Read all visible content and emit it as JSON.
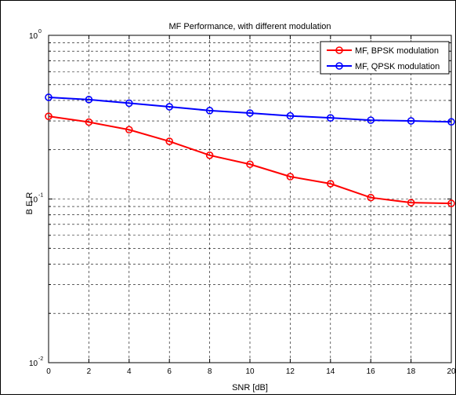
{
  "chart_data": {
    "type": "line",
    "title": "MF  Performance, with different modulation",
    "xlabel": "SNR  [dB]",
    "ylabel": "B E R",
    "xlim": [
      0,
      20
    ],
    "ylim": [
      0.01,
      1
    ],
    "yscale": "log",
    "grid": true,
    "legend_position": "top-right",
    "x": [
      0,
      2,
      4,
      6,
      8,
      10,
      12,
      14,
      16,
      18,
      20
    ],
    "x_tick_labels": [
      "0",
      "2",
      "4",
      "6",
      "8",
      "10",
      "12",
      "14",
      "16",
      "18",
      "20"
    ],
    "y_tick_labels": [
      {
        "base": "10",
        "exp": "-2",
        "value": 0.01
      },
      {
        "base": "10",
        "exp": "-1",
        "value": 0.1
      },
      {
        "base": "10",
        "exp": "0",
        "value": 1
      }
    ],
    "series": [
      {
        "name": "MF, BPSK modulation",
        "color": "#ff0000",
        "marker": "circle",
        "values": [
          0.32,
          0.295,
          0.265,
          0.225,
          0.185,
          0.163,
          0.137,
          0.124,
          0.102,
          0.095,
          0.094
        ]
      },
      {
        "name": "MF, QPSK modulation",
        "color": "#0000ff",
        "marker": "circle",
        "values": [
          0.418,
          0.405,
          0.385,
          0.366,
          0.347,
          0.335,
          0.322,
          0.313,
          0.303,
          0.3,
          0.296
        ]
      }
    ]
  }
}
